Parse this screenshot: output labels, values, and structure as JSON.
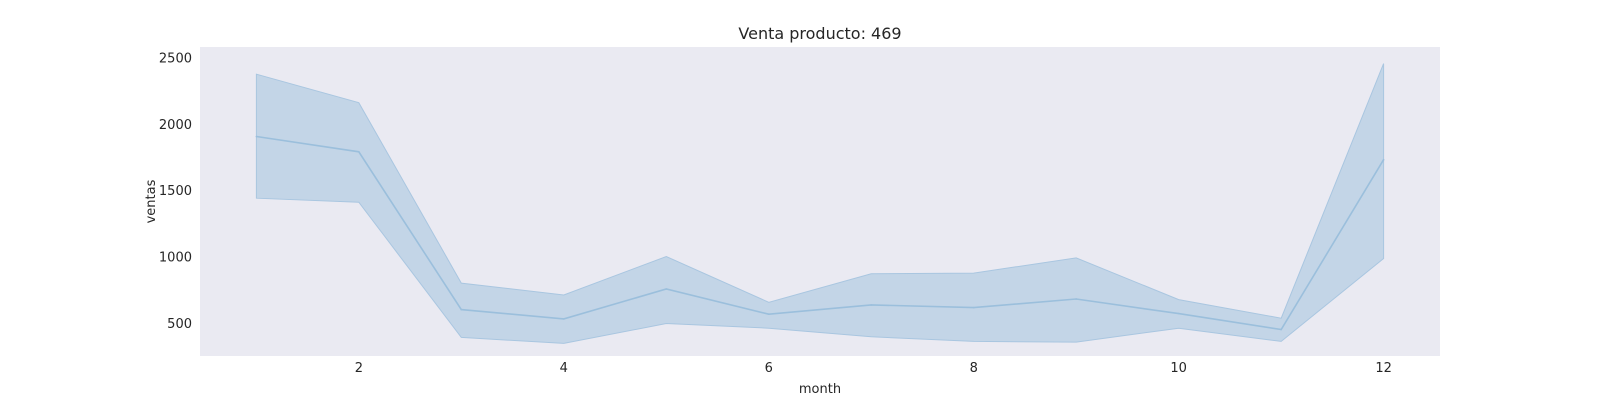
{
  "chart_data": {
    "type": "line",
    "title": "Venta producto: 469",
    "xlabel": "month",
    "ylabel": "ventas",
    "xlim": [
      0.45,
      12.55
    ],
    "ylim": [
      250,
      2580
    ],
    "xticks": [
      2,
      4,
      6,
      8,
      10,
      12
    ],
    "yticks": [
      500,
      1000,
      1500,
      2000,
      2500
    ],
    "grid": false,
    "legend": "none",
    "colors": {
      "line": "#9bbfdc",
      "band": "#a9c6e0",
      "plot_background": "#eaeaf2"
    },
    "series": [
      {
        "x": [
          1,
          2,
          3,
          4,
          5,
          6,
          7,
          8,
          9,
          10,
          11,
          12
        ],
        "values": [
          1905,
          1790,
          600,
          530,
          755,
          565,
          635,
          615,
          680,
          570,
          450,
          1730
        ],
        "ci_upper": [
          2375,
          2160,
          800,
          710,
          1000,
          655,
          870,
          875,
          990,
          675,
          535,
          2455
        ],
        "ci_lower": [
          1440,
          1410,
          390,
          345,
          495,
          460,
          395,
          360,
          355,
          460,
          360,
          985
        ]
      }
    ]
  }
}
